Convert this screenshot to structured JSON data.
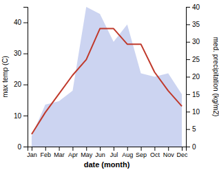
{
  "chart_data": {
    "type": "line",
    "xlabel": "date (month)",
    "ylabel": "max temp (C)",
    "y2label": "med. precipitation (kg/m2)",
    "categories": [
      "Jan",
      "Feb",
      "Mar",
      "Apr",
      "May",
      "Jun",
      "Jul",
      "Aug",
      "Sep",
      "Oct",
      "Nov",
      "Dec"
    ],
    "series": [
      {
        "type": "area",
        "axis": "y2",
        "color": "#aab8e8",
        "values": [
          3,
          12,
          13,
          16,
          40,
          38,
          30,
          35,
          21,
          20,
          21,
          15
        ]
      },
      {
        "type": "line",
        "color": "#c0392b",
        "values": [
          4,
          11,
          17,
          23,
          28,
          38,
          38,
          33,
          33,
          24,
          18,
          13
        ]
      }
    ],
    "ylim": [
      0,
      45
    ],
    "yticks": [
      0,
      10,
      20,
      30,
      40
    ],
    "y2lim": [
      0,
      40
    ],
    "y2ticks": [
      0,
      5,
      10,
      15,
      20,
      25,
      30,
      35,
      40
    ],
    "grid": false
  }
}
